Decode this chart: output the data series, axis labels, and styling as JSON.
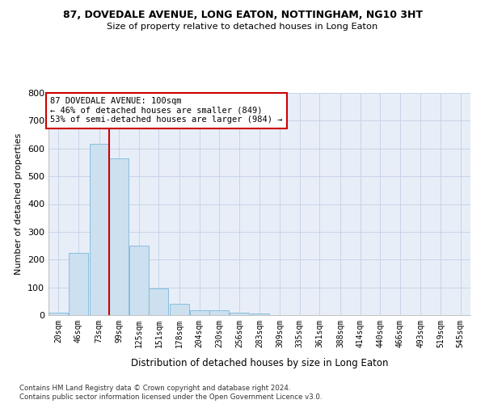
{
  "title": "87, DOVEDALE AVENUE, LONG EATON, NOTTINGHAM, NG10 3HT",
  "subtitle": "Size of property relative to detached houses in Long Eaton",
  "xlabel": "Distribution of detached houses by size in Long Eaton",
  "ylabel": "Number of detached properties",
  "bar_color": "#cce0f0",
  "bar_edge_color": "#7ab8d9",
  "grid_color": "#c8d4e8",
  "background_color": "#e8eef8",
  "annotation_box_color": "#cc0000",
  "annotation_text": "87 DOVEDALE AVENUE: 100sqm\n← 46% of detached houses are smaller (849)\n53% of semi-detached houses are larger (984) →",
  "property_line_x": 99,
  "property_line_color": "#cc0000",
  "footnote1": "Contains HM Land Registry data © Crown copyright and database right 2024.",
  "footnote2": "Contains public sector information licensed under the Open Government Licence v3.0.",
  "bin_labels": [
    "20sqm",
    "46sqm",
    "73sqm",
    "99sqm",
    "125sqm",
    "151sqm",
    "178sqm",
    "204sqm",
    "230sqm",
    "256sqm",
    "283sqm",
    "309sqm",
    "335sqm",
    "361sqm",
    "388sqm",
    "414sqm",
    "440sqm",
    "466sqm",
    "493sqm",
    "519sqm",
    "545sqm"
  ],
  "bin_edges": [
    20,
    46,
    73,
    99,
    125,
    151,
    178,
    204,
    230,
    256,
    283,
    309,
    335,
    361,
    388,
    414,
    440,
    466,
    493,
    519,
    545
  ],
  "bar_heights": [
    8,
    225,
    618,
    565,
    250,
    97,
    42,
    17,
    17,
    10,
    5,
    0,
    0,
    0,
    0,
    0,
    0,
    0,
    0,
    0,
    0
  ],
  "ylim": [
    0,
    800
  ],
  "yticks": [
    0,
    100,
    200,
    300,
    400,
    500,
    600,
    700,
    800
  ]
}
